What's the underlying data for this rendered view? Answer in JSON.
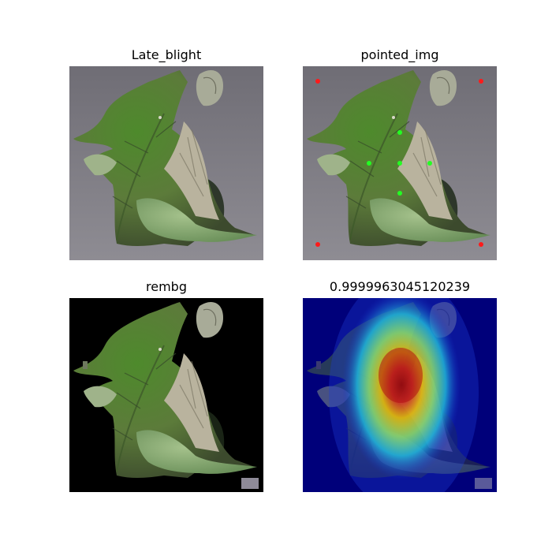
{
  "figure": {
    "panels": [
      {
        "title": "Late_blight"
      },
      {
        "title": "pointed_img"
      },
      {
        "title": "rembg"
      },
      {
        "title": "0.9999963045120239"
      }
    ]
  },
  "colors": {
    "figure_bg": "#ffffff",
    "photo_bg": "#6d6b73",
    "masked_bg": "#000000",
    "heatmap_base": "#00007a",
    "leaf_green": "#5f8a3a",
    "leaf_dry": "#b7b29c",
    "point_positive": "#22ff22",
    "point_negative": "#ff1a1a"
  },
  "icons": {
    "positive_point": "green-dot",
    "negative_point": "red-dot"
  }
}
